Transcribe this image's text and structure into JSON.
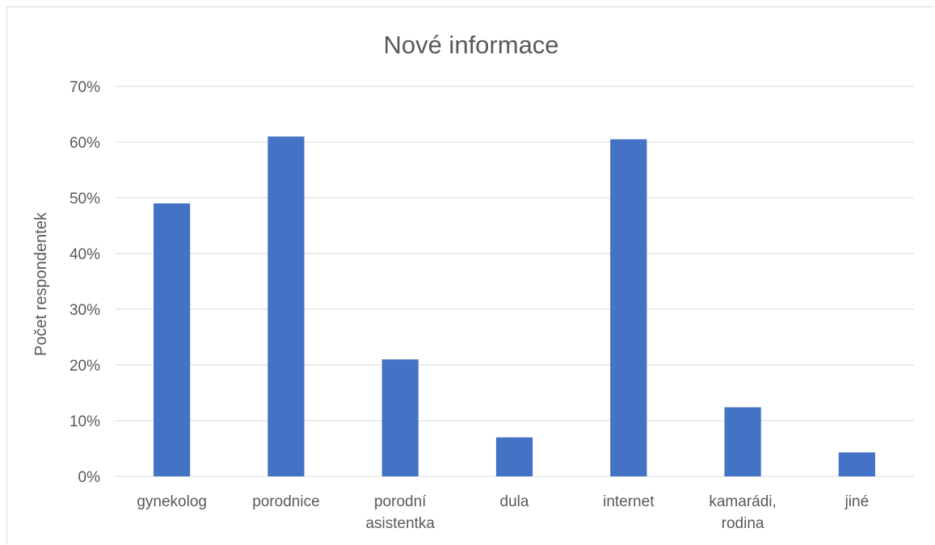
{
  "chart_data": {
    "type": "bar",
    "title": "Nové informace",
    "xlabel": "",
    "ylabel": "Počet respondentek",
    "ylim": [
      0,
      70
    ],
    "yticks": [
      0,
      10,
      20,
      30,
      40,
      50,
      60,
      70
    ],
    "ytick_labels": [
      "0%",
      "10%",
      "20%",
      "30%",
      "40%",
      "50%",
      "60%",
      "70%"
    ],
    "grid": true,
    "categories": [
      [
        "gynekolog"
      ],
      [
        "porodnice"
      ],
      [
        "porodní",
        "asistentka"
      ],
      [
        "dula"
      ],
      [
        "internet"
      ],
      [
        "kamarádi,",
        "rodina"
      ],
      [
        "jiné"
      ]
    ],
    "values": [
      49,
      61,
      21,
      7,
      60.5,
      12.4,
      4.3
    ],
    "bar_color": "#4472c4",
    "grid_color": "#d9d9d9",
    "text_color": "#595959"
  }
}
